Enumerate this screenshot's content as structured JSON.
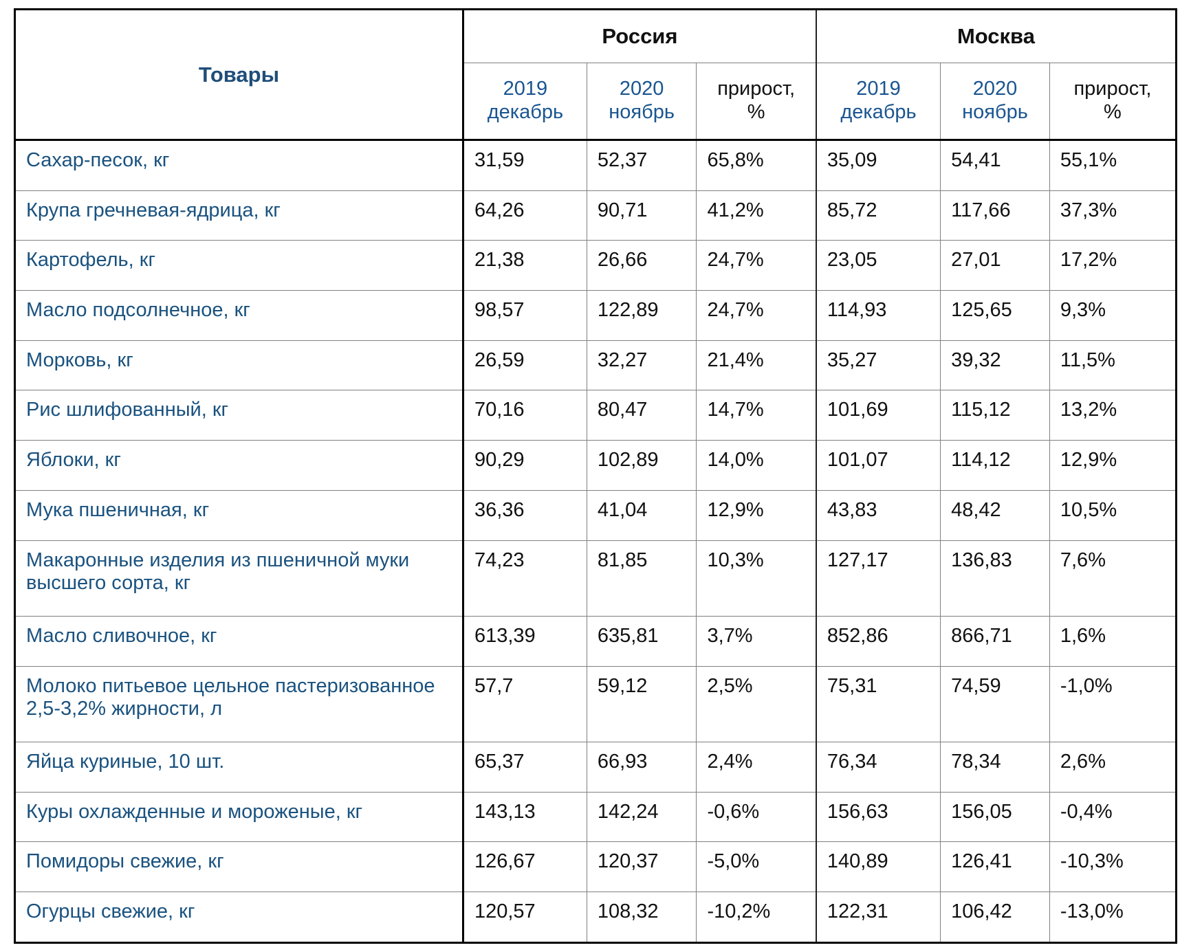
{
  "chart_data": {
    "type": "table",
    "corner_header": "Товары",
    "groups": [
      {
        "label": "Россия"
      },
      {
        "label": "Москва"
      }
    ],
    "sub_columns": [
      {
        "lines": [
          "2019",
          "декабрь"
        ],
        "color_style": "blue"
      },
      {
        "lines": [
          "2020",
          "ноябрь"
        ],
        "color_style": "blue"
      },
      {
        "lines": [
          "прирост,",
          "%"
        ],
        "color_style": "black"
      },
      {
        "lines": [
          "2019",
          "декабрь"
        ],
        "color_style": "blue"
      },
      {
        "lines": [
          "2020",
          "ноябрь"
        ],
        "color_style": "blue"
      },
      {
        "lines": [
          "прирост,",
          "%"
        ],
        "color_style": "black"
      }
    ],
    "rows": [
      {
        "product": "Сахар-песок, кг",
        "values": [
          "31,59",
          "52,37",
          "65,8%",
          "35,09",
          "54,41",
          "55,1%"
        ]
      },
      {
        "product": "Крупа гречневая-ядрица, кг",
        "values": [
          "64,26",
          "90,71",
          "41,2%",
          "85,72",
          "117,66",
          "37,3%"
        ]
      },
      {
        "product": "Картофель, кг",
        "values": [
          "21,38",
          "26,66",
          "24,7%",
          "23,05",
          "27,01",
          "17,2%"
        ]
      },
      {
        "product": "Масло подсолнечное, кг",
        "values": [
          "98,57",
          "122,89",
          "24,7%",
          "114,93",
          "125,65",
          "9,3%"
        ]
      },
      {
        "product": "Морковь, кг",
        "values": [
          "26,59",
          "32,27",
          "21,4%",
          "35,27",
          "39,32",
          "11,5%"
        ]
      },
      {
        "product": "Рис шлифованный, кг",
        "values": [
          "70,16",
          "80,47",
          "14,7%",
          "101,69",
          "115,12",
          "13,2%"
        ]
      },
      {
        "product": "Яблоки, кг",
        "values": [
          "90,29",
          "102,89",
          "14,0%",
          "101,07",
          "114,12",
          "12,9%"
        ]
      },
      {
        "product": "Мука пшеничная, кг",
        "values": [
          "36,36",
          "41,04",
          "12,9%",
          "43,83",
          "48,42",
          "10,5%"
        ]
      },
      {
        "product": "Макаронные изделия из пшеничной муки высшего сорта, кг",
        "values": [
          "74,23",
          "81,85",
          "10,3%",
          "127,17",
          "136,83",
          "7,6%"
        ]
      },
      {
        "product": "Масло сливочное, кг",
        "values": [
          "613,39",
          "635,81",
          "3,7%",
          "852,86",
          "866,71",
          "1,6%"
        ]
      },
      {
        "product": "Молоко питьевое цельное пастеризованное 2,5-3,2% жирности, л",
        "values": [
          "57,7",
          "59,12",
          "2,5%",
          "75,31",
          "74,59",
          "-1,0%"
        ]
      },
      {
        "product": "Яйца куриные, 10 шт.",
        "values": [
          "65,37",
          "66,93",
          "2,4%",
          "76,34",
          "78,34",
          "2,6%"
        ]
      },
      {
        "product": "Куры охлажденные и мороженые, кг",
        "values": [
          "143,13",
          "142,24",
          "-0,6%",
          "156,63",
          "156,05",
          "-0,4%"
        ]
      },
      {
        "product": "Помидоры свежие, кг",
        "values": [
          "126,67",
          "120,37",
          "-5,0%",
          "140,89",
          "126,41",
          "-10,3%"
        ]
      },
      {
        "product": "Огурцы свежие, кг",
        "values": [
          "120,57",
          "108,32",
          "-10,2%",
          "122,31",
          "106,42",
          "-13,0%"
        ]
      }
    ]
  },
  "colors": {
    "product_text": "#1a527f",
    "corner_header_text": "#1f4e79",
    "subheader_blue": "#1a5590",
    "group_header_text": "#111111",
    "number_text": "#111111",
    "border_thin": "#808080",
    "border_thick": "#000000"
  }
}
